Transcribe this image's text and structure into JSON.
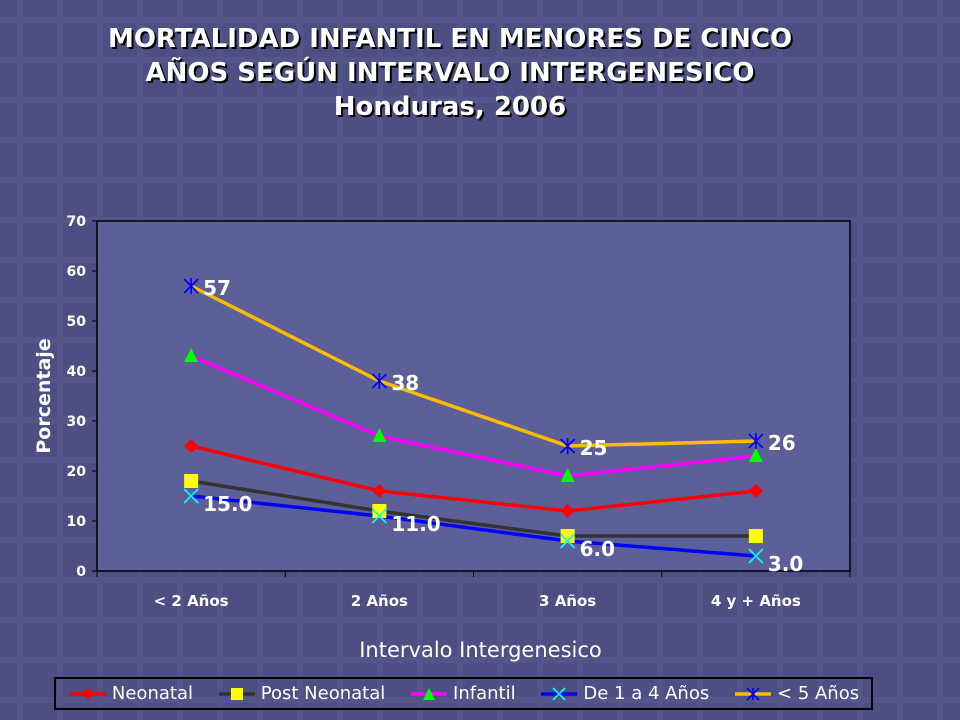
{
  "title": {
    "line1": "MORTALIDAD INFANTIL EN MENORES DE CINCO",
    "line2": "AÑOS SEGÚN INTERVALO INTERGENESICO",
    "line3": "Honduras, 2006"
  },
  "colors": {
    "background": "#4d4f83",
    "plot_area": "#5c5f98",
    "neonatal": "#ff0000",
    "post_neonatal": "#333333",
    "infantil": "#ff00ff",
    "de1a4": "#0000ff",
    "menos5": "#ffbb00"
  },
  "chart_data": {
    "type": "line",
    "categories": [
      "< 2 Años",
      "2 Años",
      "3 Años",
      "4 y + Años"
    ],
    "xlabel": "Intervalo Intergenesico",
    "ylabel": "Porcentaje",
    "ylim": [
      0,
      70
    ],
    "yticks": [
      0,
      10,
      20,
      30,
      40,
      50,
      60,
      70
    ],
    "grid": false,
    "legend_position": "bottom",
    "series": [
      {
        "name": "Neonatal",
        "values": [
          25,
          16,
          12,
          16
        ],
        "color": "#ff0000",
        "marker": "diamond",
        "line_color": "#ff0000",
        "labels": null
      },
      {
        "name": "Post Neonatal",
        "values": [
          18,
          12,
          7,
          7
        ],
        "color": "#ffff00",
        "marker": "square",
        "line_color": "#333333",
        "labels": null
      },
      {
        "name": "Infantil",
        "values": [
          43,
          27,
          19,
          23
        ],
        "color": "#00ff00",
        "marker": "triangle",
        "line_color": "#ff00ff",
        "labels": null
      },
      {
        "name": "De 1 a 4 Años",
        "values": [
          15,
          11,
          6,
          3
        ],
        "color": "#00ffff",
        "marker": "x",
        "line_color": "#0000ff",
        "labels": [
          "15.0",
          "11.0",
          "6.0",
          "3.0"
        ]
      },
      {
        "name": "< 5 Años",
        "values": [
          57,
          38,
          25,
          26
        ],
        "color": "#0000ff",
        "marker": "star",
        "line_color": "#ffbb00",
        "labels": [
          "57",
          "38",
          "25",
          "26"
        ]
      }
    ]
  }
}
